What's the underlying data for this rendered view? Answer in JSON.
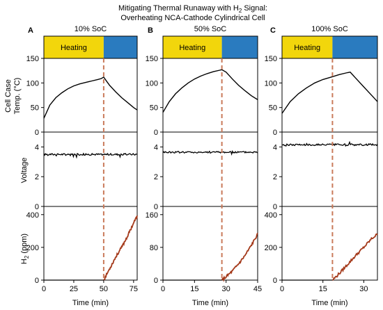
{
  "figure": {
    "title_line1_a": "Mitigating Thermal Runaway with H",
    "title_line1_sub": "2",
    "title_line1_b": " Signal:",
    "title_line2": "Overheating NCA-Cathode Cylindrical Cell"
  },
  "labels": {
    "temp_line1": "Cell Case",
    "temp_line2": "Temp. (°C)",
    "voltage": "Voltage",
    "h2_a": "H",
    "h2_sub": "2",
    "h2_b": " (ppm)",
    "xlabel": "Time (min)",
    "heating": "Heating"
  },
  "colors": {
    "heating": "#f2d60c",
    "cooling": "#2a7bbf",
    "marker": "#c97a5a",
    "h2": "#a4391a",
    "line": "#000000"
  },
  "chart_data": [
    {
      "type": "line",
      "panel": "A",
      "title": "10% SoC",
      "xlim": [
        0,
        78
      ],
      "xticks": [
        0,
        25,
        50,
        75
      ],
      "event_x": 50,
      "temp": {
        "ylim": [
          0,
          150
        ],
        "yticks": [
          0,
          50,
          100,
          150
        ],
        "x": [
          0,
          5,
          10,
          15,
          20,
          25,
          30,
          35,
          40,
          45,
          48,
          50,
          52,
          55,
          60,
          65,
          70,
          75,
          78
        ],
        "y": [
          28,
          55,
          70,
          80,
          88,
          94,
          98,
          101,
          104,
          107,
          109,
          112,
          105,
          95,
          82,
          70,
          60,
          50,
          45
        ]
      },
      "voltage": {
        "ylim": [
          0,
          5
        ],
        "yticks": [
          0,
          2,
          4
        ],
        "level": 3.5
      },
      "h2": {
        "ylim": [
          0,
          450
        ],
        "yticks": [
          0,
          200,
          400
        ],
        "x": [
          50,
          55,
          60,
          65,
          70,
          75,
          78
        ],
        "y": [
          0,
          70,
          140,
          200,
          270,
          350,
          390
        ]
      }
    },
    {
      "type": "line",
      "panel": "B",
      "title": "50% SoC",
      "xlim": [
        0,
        45
      ],
      "xticks": [
        0,
        15,
        30,
        45
      ],
      "event_x": 28,
      "temp": {
        "ylim": [
          0,
          150
        ],
        "yticks": [
          0,
          50,
          100,
          150
        ],
        "x": [
          0,
          3,
          6,
          9,
          12,
          15,
          18,
          21,
          24,
          27,
          28,
          30,
          33,
          36,
          39,
          42,
          45
        ],
        "y": [
          40,
          62,
          78,
          90,
          100,
          108,
          114,
          119,
          123,
          126,
          127,
          122,
          108,
          95,
          84,
          74,
          66
        ]
      },
      "voltage": {
        "ylim": [
          0,
          5
        ],
        "yticks": [
          0,
          2,
          4
        ],
        "level": 3.65
      },
      "h2": {
        "ylim": [
          0,
          180
        ],
        "yticks": [
          0,
          80,
          160
        ],
        "x": [
          28,
          30,
          33,
          36,
          39,
          42,
          45
        ],
        "y": [
          0,
          8,
          22,
          40,
          60,
          85,
          112
        ]
      }
    },
    {
      "type": "line",
      "panel": "C",
      "title": "100% SoC",
      "xlim": [
        0,
        35
      ],
      "xticks": [
        0,
        15,
        30
      ],
      "event_x": 18.5,
      "temp": {
        "ylim": [
          0,
          150
        ],
        "yticks": [
          0,
          50,
          100,
          150
        ],
        "x": [
          0,
          3,
          6,
          9,
          12,
          15,
          18,
          21,
          24,
          25,
          27,
          30,
          33,
          35
        ],
        "y": [
          38,
          62,
          78,
          90,
          100,
          107,
          112,
          117,
          121,
          122,
          110,
          92,
          74,
          62
        ]
      },
      "voltage": {
        "ylim": [
          0,
          5
        ],
        "yticks": [
          0,
          2,
          4
        ],
        "level": 4.15
      },
      "h2": {
        "ylim": [
          0,
          450
        ],
        "yticks": [
          0,
          200,
          400
        ],
        "x": [
          18.5,
          21,
          24,
          27,
          30,
          33,
          35
        ],
        "y": [
          0,
          40,
          95,
          150,
          200,
          255,
          280
        ]
      }
    }
  ]
}
